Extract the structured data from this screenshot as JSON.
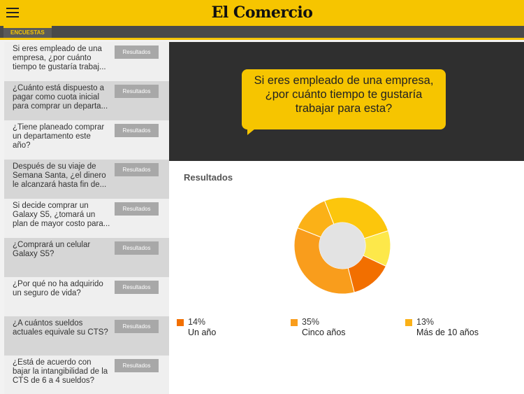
{
  "header": {
    "logo": "El Comercio",
    "section_tab": "ENCUESTAS",
    "accent_color": "#f6c500"
  },
  "icons": {
    "menu": "hamburger-menu-icon"
  },
  "sidebar": {
    "items": [
      {
        "question": "Si eres empleado de una empresa, ¿por cuánto tiempo te gustaría trabaj...",
        "button": "Resultados"
      },
      {
        "question": "¿Cuánto está dispuesto a pagar como cuota inicial para comprar un departa...",
        "button": "Resultados"
      },
      {
        "question": "¿Tiene planeado comprar un departamento este año?",
        "button": "Resultados"
      },
      {
        "question": "Después de su viaje de Semana Santa, ¿el dinero le alcanzará hasta fin de...",
        "button": "Resultados"
      },
      {
        "question": "Si decide comprar un Galaxy S5, ¿tomará un plan de mayor costo para...",
        "button": "Resultados"
      },
      {
        "question": "¿Comprará un celular Galaxy S5?",
        "button": "Resultados"
      },
      {
        "question": "¿Por qué no ha adquirido un seguro de vida?",
        "button": "Resultados"
      },
      {
        "question": "¿A cuántos sueldos actuales equivale su CTS?",
        "button": "Resultados"
      },
      {
        "question": "¿Está de acuerdo con bajar la intangibilidad de la CTS de 6 a 4 sueldos?",
        "button": "Resultados"
      }
    ]
  },
  "main": {
    "question": "Si eres empleado de una empresa, ¿por cuánto tiempo te gustaría trabajar para esta?",
    "results_title": "Resultados"
  },
  "chart_data": {
    "type": "pie",
    "title": "",
    "slices": [
      {
        "label": "Un año",
        "value": 14,
        "display": "14%",
        "color": "#f26f00"
      },
      {
        "label": "Cinco años",
        "value": 35,
        "display": "35%",
        "color": "#f99d1c"
      },
      {
        "label": "Más de 10 años",
        "value": 13,
        "display": "13%",
        "color": "#fbb117"
      },
      {
        "label": "",
        "value": 26,
        "color": "#fcc60c"
      },
      {
        "label": "",
        "value": 12,
        "color": "#fde84a"
      }
    ]
  }
}
